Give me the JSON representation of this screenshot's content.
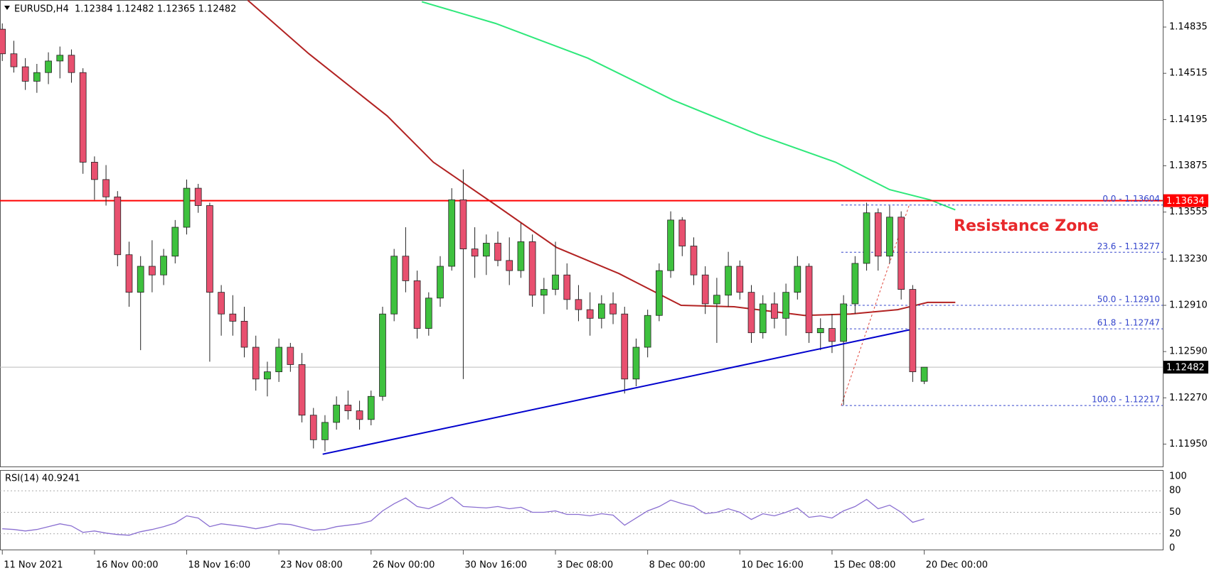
{
  "chart_data": {
    "type": "candlestick",
    "title": "EURUSD,H4  1.12384 1.12482 1.12365 1.12482",
    "xlim": [
      -0.2,
      100.7
    ],
    "xticks": [
      {
        "value": 0,
        "label": "11 Nov 2021"
      },
      {
        "value": 8,
        "label": "16 Nov 00:00"
      },
      {
        "value": 16,
        "label": "18 Nov 16:00"
      },
      {
        "value": 24,
        "label": "23 Nov 08:00"
      },
      {
        "value": 32,
        "label": "26 Nov 00:00"
      },
      {
        "value": 40,
        "label": "30 Nov 16:00"
      },
      {
        "value": 48,
        "label": "3 Dec 08:00"
      },
      {
        "value": 56,
        "label": "8 Dec 00:00"
      },
      {
        "value": 64,
        "label": "10 Dec 16:00"
      },
      {
        "value": 72,
        "label": "15 Dec 08:00"
      },
      {
        "value": 80,
        "label": "20 Dec 00:00"
      }
    ],
    "ylim": [
      1.11795,
      1.15022
    ],
    "yticks": [
      {
        "value": 1.1195,
        "label": "1.11950"
      },
      {
        "value": 1.1227,
        "label": "1.12270"
      },
      {
        "value": 1.1259,
        "label": "1.12590"
      },
      {
        "value": 1.1291,
        "label": "1.12910"
      },
      {
        "value": 1.1323,
        "label": "1.13230"
      },
      1.13555,
      1.13875,
      1.14195,
      1.14515,
      1.14835
    ],
    "up_color": "#3ec13e",
    "down_color": "#e8506f",
    "open": [
      1.1482,
      1.1465,
      1.1456,
      1.1446,
      1.1452,
      1.146,
      1.1464,
      1.1452,
      1.139,
      1.1378,
      1.1366,
      1.1326,
      1.13,
      1.1318,
      1.1312,
      1.1325,
      1.1345,
      1.1372,
      1.136,
      1.13,
      1.1285,
      1.128,
      1.1262,
      1.124,
      1.1245,
      1.1262,
      1.125,
      1.1215,
      1.1198,
      1.121,
      1.1222,
      1.1218,
      1.1212,
      1.1228,
      1.1285,
      1.1325,
      1.1308,
      1.1275,
      1.1296,
      1.1318,
      1.1364,
      1.133,
      1.1325,
      1.1334,
      1.1322,
      1.1315,
      1.1335,
      1.1298,
      1.1302,
      1.1312,
      1.1295,
      1.1288,
      1.1282,
      1.1292,
      1.1285,
      1.124,
      1.1262,
      1.1284,
      1.1315,
      1.135,
      1.1332,
      1.1312,
      1.1292,
      1.1298,
      1.1318,
      1.13,
      1.1272,
      1.1292,
      1.1282,
      1.13,
      1.1318,
      1.1272,
      1.1275,
      1.1266,
      1.1292,
      1.132,
      1.1355,
      1.1325,
      1.1352,
      1.1302,
      1.12384
    ],
    "high": [
      1.1486,
      1.1474,
      1.1462,
      1.1458,
      1.1466,
      1.147,
      1.1468,
      1.1455,
      1.1394,
      1.1388,
      1.137,
      1.1335,
      1.1325,
      1.1336,
      1.133,
      1.135,
      1.1378,
      1.1375,
      1.1362,
      1.1305,
      1.1298,
      1.129,
      1.127,
      1.1252,
      1.1268,
      1.1265,
      1.1258,
      1.122,
      1.1215,
      1.1228,
      1.1232,
      1.1225,
      1.1232,
      1.129,
      1.133,
      1.1345,
      1.1315,
      1.13,
      1.1325,
      1.1372,
      1.1385,
      1.1345,
      1.134,
      1.1342,
      1.1338,
      1.1348,
      1.134,
      1.131,
      1.1335,
      1.132,
      1.1305,
      1.13,
      1.1298,
      1.13,
      1.129,
      1.1268,
      1.1288,
      1.132,
      1.1356,
      1.1352,
      1.1338,
      1.1318,
      1.131,
      1.1328,
      1.1322,
      1.1305,
      1.1298,
      1.13,
      1.1306,
      1.1325,
      1.132,
      1.1282,
      1.1285,
      1.1298,
      1.1325,
      1.1362,
      1.1358,
      1.136,
      1.1356,
      1.1305,
      1.12482
    ],
    "low": [
      1.146,
      1.1452,
      1.144,
      1.1438,
      1.1444,
      1.1448,
      1.1445,
      1.1382,
      1.1364,
      1.136,
      1.1318,
      1.129,
      1.126,
      1.13,
      1.1305,
      1.132,
      1.134,
      1.1355,
      1.1252,
      1.127,
      1.127,
      1.1255,
      1.1232,
      1.1228,
      1.1238,
      1.1245,
      1.121,
      1.1192,
      1.119,
      1.1205,
      1.1212,
      1.1205,
      1.1208,
      1.1225,
      1.128,
      1.13,
      1.1268,
      1.127,
      1.129,
      1.1315,
      1.124,
      1.131,
      1.1312,
      1.1318,
      1.1305,
      1.131,
      1.129,
      1.1285,
      1.1298,
      1.1288,
      1.128,
      1.127,
      1.1275,
      1.1278,
      1.123,
      1.1235,
      1.1255,
      1.128,
      1.131,
      1.1325,
      1.1305,
      1.1285,
      1.1265,
      1.129,
      1.1295,
      1.1265,
      1.1268,
      1.1275,
      1.127,
      1.1295,
      1.1265,
      1.126,
      1.1258,
      1.1222,
      1.1285,
      1.1315,
      1.1315,
      1.132,
      1.1295,
      1.1238,
      1.12365
    ],
    "close": [
      1.1465,
      1.1456,
      1.1446,
      1.1452,
      1.146,
      1.1464,
      1.1452,
      1.139,
      1.1378,
      1.1366,
      1.1326,
      1.13,
      1.1318,
      1.1312,
      1.1325,
      1.1345,
      1.1372,
      1.136,
      1.13,
      1.1285,
      1.128,
      1.1262,
      1.124,
      1.1245,
      1.1262,
      1.125,
      1.1215,
      1.1198,
      1.121,
      1.1222,
      1.1218,
      1.1212,
      1.1228,
      1.1285,
      1.1325,
      1.1308,
      1.1275,
      1.1296,
      1.1318,
      1.1364,
      1.133,
      1.1325,
      1.1334,
      1.1322,
      1.1315,
      1.1335,
      1.1298,
      1.1302,
      1.1312,
      1.1295,
      1.1288,
      1.1282,
      1.1292,
      1.1285,
      1.124,
      1.1262,
      1.1284,
      1.1315,
      1.135,
      1.1332,
      1.1312,
      1.1292,
      1.1298,
      1.1318,
      1.13,
      1.1272,
      1.1292,
      1.1282,
      1.13,
      1.1318,
      1.1272,
      1.1275,
      1.1266,
      1.1292,
      1.132,
      1.1355,
      1.1325,
      1.1352,
      1.1302,
      1.1245,
      1.12482
    ],
    "last_price": 1.12482,
    "resistance": {
      "value": 1.13634,
      "color": "#ff0000"
    },
    "annotation": "Resistance Zone",
    "moving_averages": [
      {
        "color": "#b22222",
        "x": [
          21.3,
          26.6,
          33.4,
          37.4,
          42.7,
          48.1,
          53.5,
          58.9,
          63.5,
          69.6,
          73.6,
          77.7,
          80.3,
          82.7
        ],
        "values": [
          1.1502,
          1.1465,
          1.1422,
          1.139,
          1.1361,
          1.1331,
          1.1313,
          1.1291,
          1.129,
          1.1284,
          1.1285,
          1.1288,
          1.1293,
          1.1293
        ]
      },
      {
        "color": "#2ee87a",
        "x": [
          36.4,
          42.8,
          50.8,
          58.2,
          65.6,
          72.3,
          77,
          80.5,
          82.7
        ],
        "values": [
          1.1501,
          1.1486,
          1.1462,
          1.1433,
          1.1409,
          1.139,
          1.1371,
          1.1364,
          1.1357
        ]
      }
    ],
    "trendline": {
      "color": "#0000cd",
      "x": [
        27.8,
        78.7
      ],
      "values": [
        1.1188,
        1.1274
      ]
    },
    "fib": {
      "color": "#3344cc",
      "x": [
        72.8,
        78.7
      ],
      "levels": [
        {
          "value": 1.13604,
          "label": "0.0 - 1.13604"
        },
        {
          "value": 1.13277,
          "label": "23.6 - 1.13277"
        },
        {
          "value": 1.1291,
          "label": "50.0 - 1.12910"
        },
        {
          "value": 1.12747,
          "label": "61.8 - 1.12747"
        },
        {
          "value": 1.12217,
          "label": "100.0 - 1.12217"
        }
      ]
    },
    "rsi": {
      "title": "RSI(14) 40.9241",
      "color": "#8a6fd1",
      "ylim": [
        0,
        100
      ],
      "yticks": [
        100,
        80,
        50,
        20,
        0
      ],
      "values": [
        27,
        26,
        24,
        26,
        30,
        34,
        31,
        22,
        24,
        21,
        19,
        18,
        23,
        26,
        30,
        35,
        45,
        42,
        30,
        34,
        32,
        30,
        27,
        30,
        34,
        33,
        29,
        25,
        26,
        30,
        32,
        34,
        38,
        52,
        62,
        70,
        58,
        55,
        62,
        71,
        58,
        57,
        56,
        58,
        55,
        57,
        50,
        50,
        52,
        47,
        47,
        45,
        48,
        46,
        32,
        42,
        52,
        58,
        67,
        62,
        58,
        48,
        50,
        55,
        50,
        40,
        48,
        45,
        50,
        56,
        43,
        45,
        42,
        52,
        58,
        68,
        55,
        60,
        50,
        36,
        40.92
      ]
    }
  }
}
